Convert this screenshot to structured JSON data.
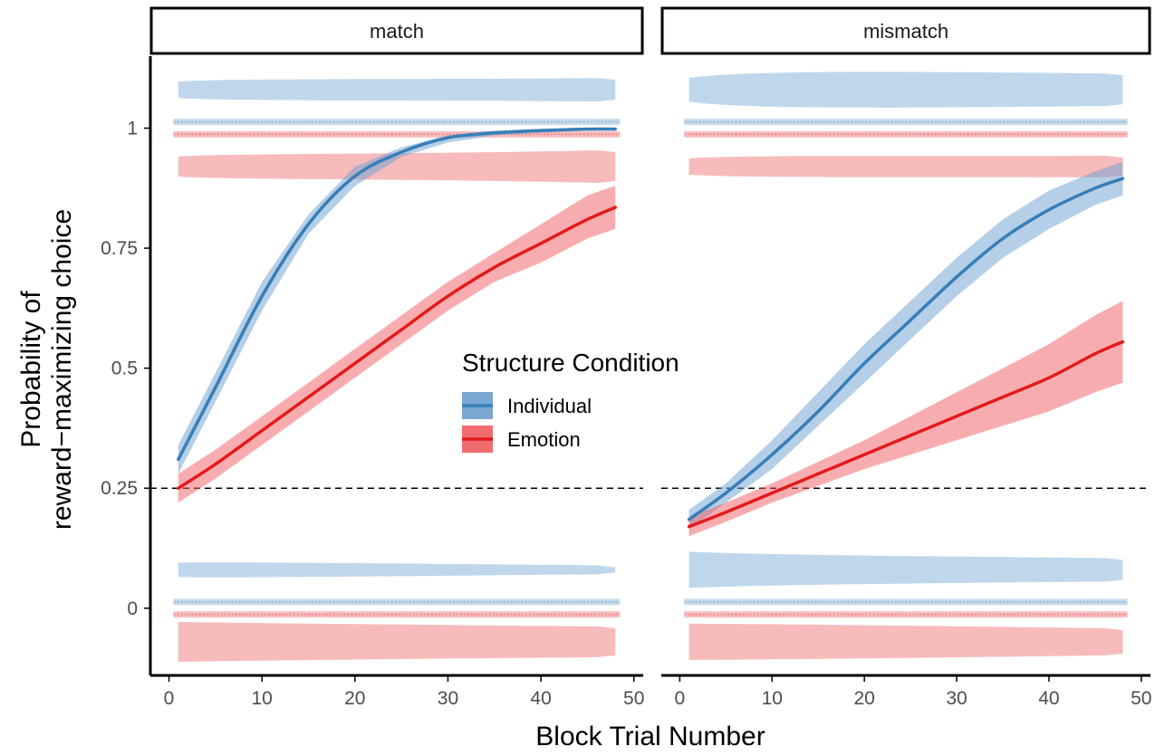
{
  "chart_data": {
    "type": "line",
    "xlabel": "Block Trial Number",
    "ylabel": [
      "Probability of",
      "reward−maximizing choice"
    ],
    "xlim": [
      -2,
      51
    ],
    "ylim": [
      -0.14,
      1.15
    ],
    "x_ticks": [
      0,
      10,
      20,
      30,
      40,
      50
    ],
    "y_ticks": [
      0,
      0.25,
      0.5,
      0.75,
      1
    ],
    "y_tick_labels": [
      "0",
      "0.25",
      "0.5",
      "0.75",
      "1"
    ],
    "reference_line": {
      "y": 0.25,
      "style": "dashed"
    },
    "grid": false,
    "legend": {
      "title": "Structure Condition",
      "placement": "center",
      "entries": [
        "Individual",
        "Emotion"
      ]
    },
    "colors": {
      "Individual": "#377eb8",
      "Individual_fill": "#6a9fcf",
      "Emotion": "#e41a1c",
      "Emotion_fill": "#ef5c5f"
    },
    "panels": [
      {
        "facet": "match",
        "series": [
          {
            "name": "Individual",
            "x": [
              1,
              5,
              10,
              15,
              20,
              25,
              30,
              35,
              40,
              45,
              48
            ],
            "y": [
              0.31,
              0.46,
              0.65,
              0.8,
              0.9,
              0.95,
              0.98,
              0.99,
              0.995,
              0.998,
              0.998
            ],
            "lower": [
              0.28,
              0.43,
              0.62,
              0.78,
              0.88,
              0.94,
              0.97,
              0.985,
              0.99,
              0.995,
              0.995
            ],
            "upper": [
              0.34,
              0.49,
              0.68,
              0.82,
              0.92,
              0.96,
              0.985,
              0.995,
              0.999,
              1.0,
              1.0
            ]
          },
          {
            "name": "Emotion",
            "x": [
              1,
              5,
              10,
              15,
              20,
              25,
              30,
              35,
              40,
              45,
              48
            ],
            "y": [
              0.25,
              0.3,
              0.37,
              0.44,
              0.51,
              0.58,
              0.65,
              0.71,
              0.76,
              0.81,
              0.835
            ],
            "lower": [
              0.22,
              0.27,
              0.34,
              0.41,
              0.48,
              0.55,
              0.62,
              0.68,
              0.72,
              0.77,
              0.79
            ],
            "upper": [
              0.28,
              0.33,
              0.4,
              0.47,
              0.54,
              0.61,
              0.68,
              0.74,
              0.8,
              0.86,
              0.88
            ]
          }
        ]
      },
      {
        "facet": "mismatch",
        "series": [
          {
            "name": "Individual",
            "x": [
              1,
              5,
              10,
              15,
              20,
              25,
              30,
              35,
              40,
              45,
              48
            ],
            "y": [
              0.185,
              0.24,
              0.32,
              0.41,
              0.51,
              0.6,
              0.69,
              0.77,
              0.83,
              0.875,
              0.895
            ],
            "lower": [
              0.165,
              0.22,
              0.29,
              0.38,
              0.47,
              0.56,
              0.65,
              0.73,
              0.79,
              0.84,
              0.86
            ],
            "upper": [
              0.205,
              0.26,
              0.35,
              0.45,
              0.55,
              0.64,
              0.73,
              0.81,
              0.87,
              0.91,
              0.93
            ]
          },
          {
            "name": "Emotion",
            "x": [
              1,
              5,
              10,
              15,
              20,
              25,
              30,
              35,
              40,
              45,
              48
            ],
            "y": [
              0.17,
              0.2,
              0.24,
              0.28,
              0.32,
              0.36,
              0.4,
              0.44,
              0.48,
              0.53,
              0.555
            ],
            "lower": [
              0.15,
              0.18,
              0.22,
              0.255,
              0.29,
              0.32,
              0.35,
              0.38,
              0.41,
              0.45,
              0.47
            ],
            "upper": [
              0.19,
              0.22,
              0.26,
              0.305,
              0.35,
              0.4,
              0.45,
              0.5,
              0.55,
              0.61,
              0.64
            ]
          }
        ]
      }
    ]
  }
}
